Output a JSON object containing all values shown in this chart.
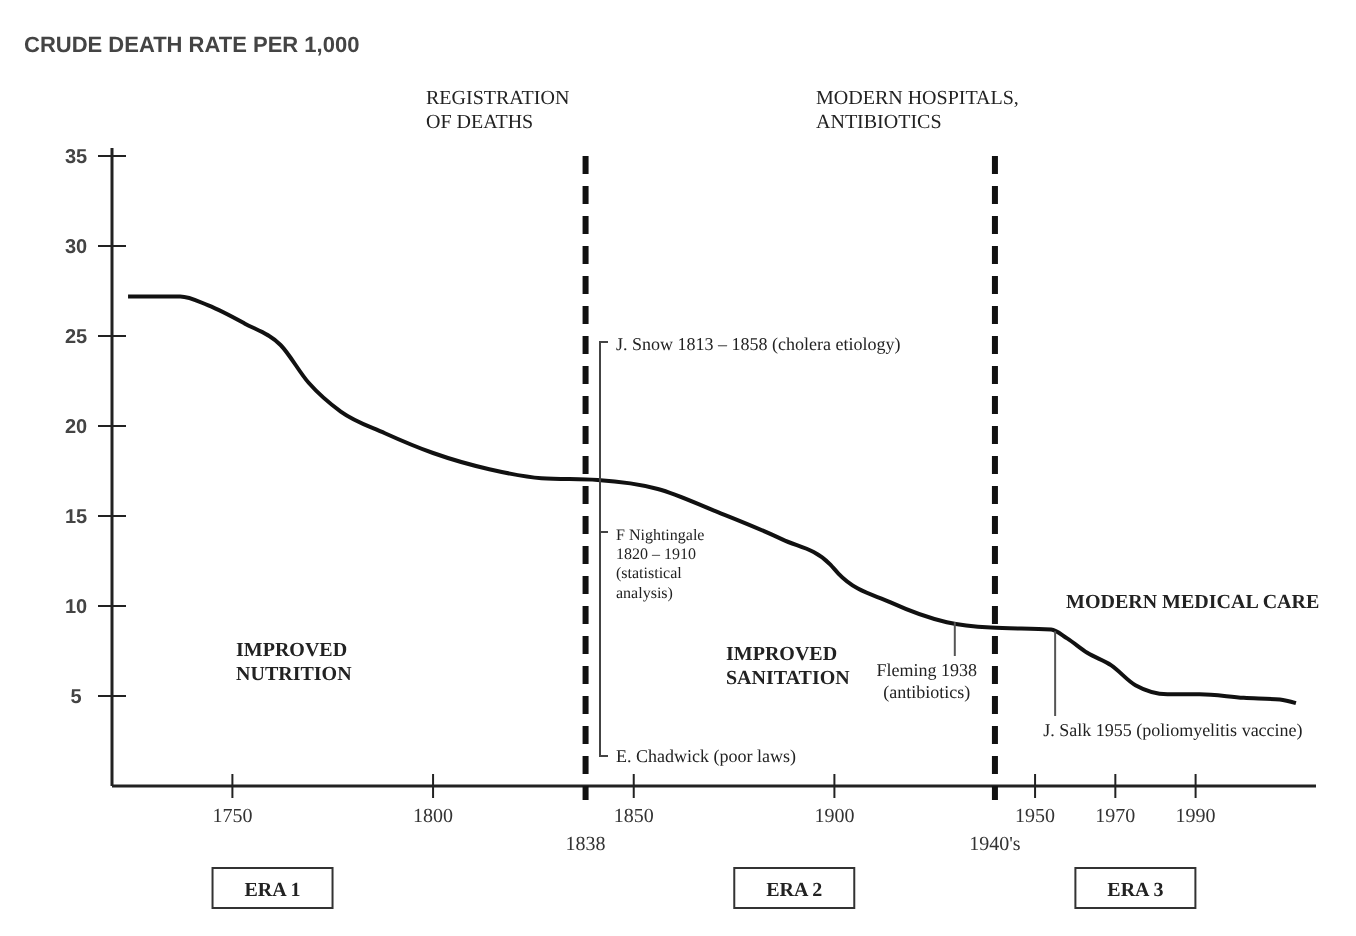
{
  "chart_data": {
    "type": "line",
    "title": "CRUDE DEATH RATE PER 1,000",
    "x": [
      1724,
      1737,
      1744,
      1753,
      1762,
      1769,
      1777,
      1788,
      1800,
      1814,
      1827,
      1841,
      1856,
      1870,
      1887,
      1899,
      1901,
      1914,
      1928,
      1939,
      1954,
      1958,
      1963,
      1969,
      1975,
      1983,
      1991,
      2002,
      2011,
      2015
    ],
    "series": [
      {
        "color": "#111111",
        "values": [
          27.2,
          27.2,
          26.7,
          25.7,
          24.5,
          22.4,
          20.8,
          19.6,
          18.5,
          17.6,
          17.1,
          17.0,
          16.5,
          15.3,
          13.7,
          12.3,
          11.8,
          10.2,
          9.1,
          8.8,
          8.7,
          8.2,
          7.4,
          6.7,
          5.6,
          5.1,
          5.1,
          4.9,
          4.8,
          4.6
        ]
      }
    ],
    "xlim": [
      1720,
      2020
    ],
    "xticks": [
      1750,
      1800,
      1850,
      1900,
      1950,
      1970,
      1990
    ],
    "ylim": [
      0,
      35
    ],
    "yticks": [
      5,
      10,
      15,
      20,
      25,
      30,
      35
    ],
    "grid": false,
    "marker": "none",
    "line_style": "solid",
    "ref_lines": [
      {
        "axis": "x",
        "value": 1838,
        "label": "1838",
        "color": "#111111",
        "line_style": "dashed"
      },
      {
        "axis": "x",
        "value": 1940,
        "label": "1940's",
        "color": "#111111",
        "line_style": "dashed"
      }
    ],
    "annotations": [
      "REGISTRATION\nOF DEATHS",
      "MODERN HOSPITALS,\nANTIBIOTICS",
      "IMPROVED\nNUTRITION",
      "IMPROVED\nSANITATION",
      "MODERN MEDICAL CARE",
      "J. Snow 1813 – 1858 (cholera etiology)",
      "F Nightingale\n1820 – 1910\n(statistical\nanalysis)",
      "E. Chadwick (poor laws)",
      {
        "text": "Fleming 1938\n(antibiotics)",
        "x": 1930,
        "y": 9.1
      },
      {
        "text": "J. Salk 1955 (poliomyelitis vaccine)",
        "x": 1955,
        "y": 8.6
      },
      "ERA 1",
      "ERA 2",
      "ERA 3"
    ]
  }
}
